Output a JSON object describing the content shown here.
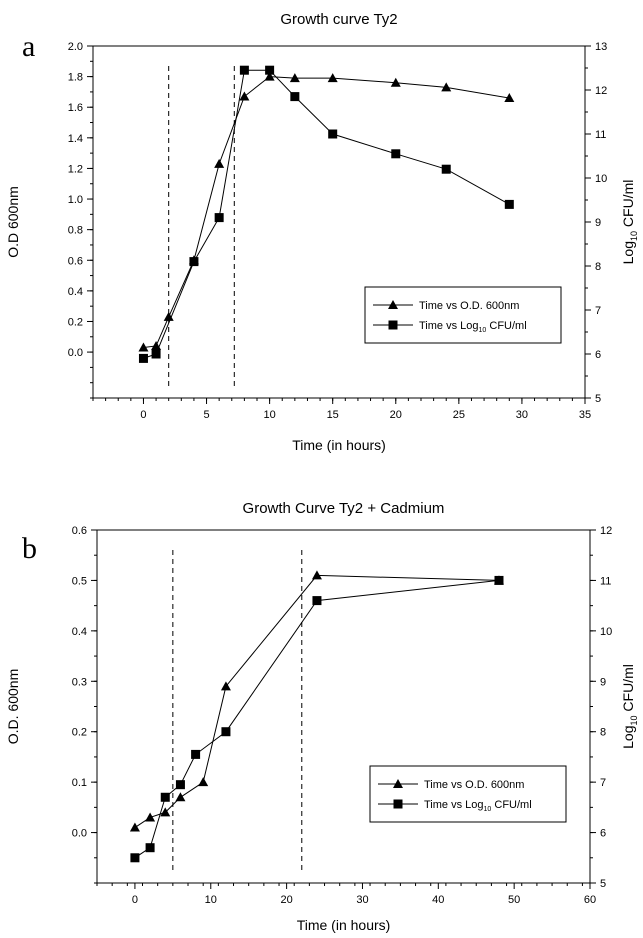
{
  "chart_data": [
    {
      "panel_label": "a",
      "type": "line",
      "title": "Growth curve Ty2",
      "xlabel": "Time (in hours)",
      "ylabel": "O.D 600nm",
      "y2label_base": "Log",
      "y2label_sub": "10",
      "y2label_rest": " CFU/ml",
      "xlim": [
        -4,
        35
      ],
      "ylim": [
        -0.3,
        2.0
      ],
      "y2lim": [
        5,
        13
      ],
      "x_ticks": [
        0,
        5,
        10,
        15,
        20,
        25,
        30,
        35
      ],
      "y_ticks": [
        "0.0",
        "0.2",
        "0.4",
        "0.6",
        "0.8",
        "1.0",
        "1.2",
        "1.4",
        "1.6",
        "1.8",
        "2.0"
      ],
      "y2_ticks": [
        5,
        6,
        7,
        8,
        9,
        10,
        11,
        12,
        13
      ],
      "dashed_lines_x": [
        2,
        7.2
      ],
      "grid": false,
      "legend_position": "lower-right",
      "series": [
        {
          "name": "Time vs O.D. 600nm",
          "marker": "triangle",
          "axis": "left",
          "x": [
            0,
            1,
            2,
            4,
            6,
            8,
            10,
            12,
            15,
            20,
            24,
            29
          ],
          "y": [
            0.03,
            0.04,
            0.23,
            0.6,
            1.23,
            1.67,
            1.8,
            1.79,
            1.79,
            1.76,
            1.73,
            1.66
          ]
        },
        {
          "name_base": "Time vs Log",
          "name_sub": "10",
          "name_rest": " CFU/ml",
          "marker": "square",
          "axis": "right",
          "x": [
            0,
            1,
            4,
            6,
            8,
            10,
            12,
            15,
            20,
            24,
            29
          ],
          "y": [
            5.9,
            6.0,
            8.1,
            9.1,
            12.45,
            12.45,
            11.85,
            11.0,
            10.55,
            10.2,
            9.4
          ]
        }
      ]
    },
    {
      "panel_label": "b",
      "type": "line",
      "title": "Growth Curve Ty2 + Cadmium",
      "xlabel": "Time (in hours)",
      "ylabel": "O.D. 600nm",
      "y2label_base": "Log",
      "y2label_sub": "10",
      "y2label_rest": " CFU/ml",
      "xlim": [
        -5,
        60
      ],
      "ylim": [
        -0.1,
        0.6
      ],
      "y2lim": [
        5,
        12
      ],
      "x_ticks": [
        0,
        10,
        20,
        30,
        40,
        50,
        60
      ],
      "y_ticks": [
        "0.0",
        "0.1",
        "0.2",
        "0.3",
        "0.4",
        "0.5",
        "0.6"
      ],
      "y2_ticks": [
        5,
        6,
        7,
        8,
        9,
        10,
        11,
        12
      ],
      "dashed_lines_x": [
        5,
        22
      ],
      "grid": false,
      "legend_position": "lower-right",
      "series": [
        {
          "name": "Time vs O.D. 600nm",
          "marker": "triangle",
          "axis": "left",
          "x": [
            0,
            2,
            4,
            6,
            9,
            12,
            24,
            48
          ],
          "y": [
            0.01,
            0.03,
            0.04,
            0.07,
            0.1,
            0.29,
            0.51,
            0.5
          ]
        },
        {
          "name_base": "Time vs Log",
          "name_sub": "10",
          "name_rest": " CFU/ml",
          "marker": "square",
          "axis": "right",
          "x": [
            0,
            2,
            4,
            6,
            8,
            12,
            24,
            48
          ],
          "y": [
            5.5,
            5.7,
            6.7,
            6.95,
            7.55,
            8.0,
            10.6,
            11.0
          ]
        }
      ]
    }
  ]
}
